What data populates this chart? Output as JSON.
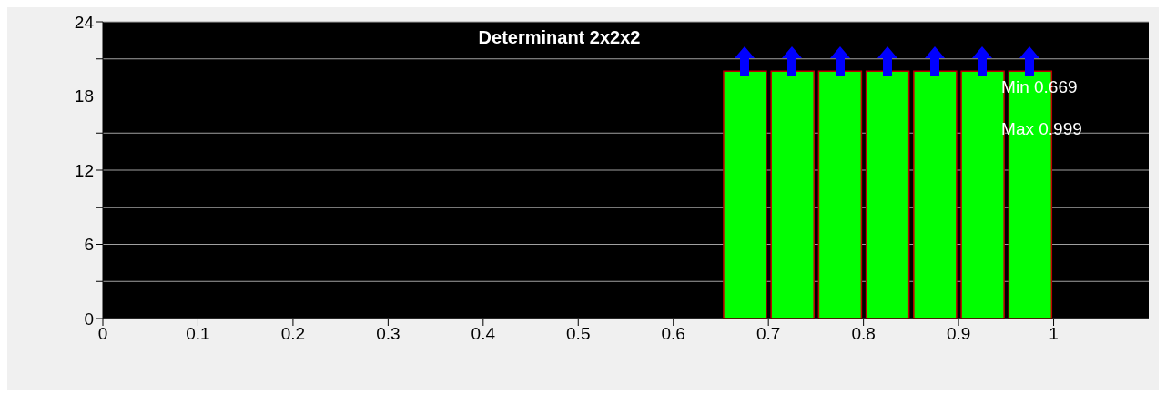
{
  "chart_data": {
    "type": "histogram",
    "title": "Determinant 2x2x2",
    "bins": [
      0,
      0.05,
      0.1,
      0.15,
      0.2,
      0.25,
      0.3,
      0.35,
      0.4,
      0.45,
      0.5,
      0.55,
      0.6,
      0.65,
      0.7,
      0.75,
      0.8,
      0.85,
      0.9,
      0.95,
      1
    ],
    "values": [
      0,
      0,
      0,
      0,
      0,
      0,
      0,
      0,
      0,
      0,
      0,
      0,
      0,
      20,
      20,
      20,
      20,
      20,
      20,
      20
    ],
    "color": "#00ff00",
    "xlim": [
      0,
      1.1
    ],
    "xticks": [
      0,
      0.1,
      0.2,
      0.3,
      0.4,
      0.5,
      0.6,
      0.7,
      0.8,
      0.9,
      1
    ],
    "ylim": [
      0,
      24
    ],
    "yticks": [
      0,
      {
        "value": 3,
        "label": null
      },
      6,
      {
        "value": 9,
        "label": null
      },
      12,
      {
        "value": 15,
        "label": null
      },
      18,
      {
        "value": 21,
        "label": null
      },
      24
    ],
    "grid": "y",
    "annotations": [
      "Min 0.669",
      "Max 0.999"
    ]
  }
}
